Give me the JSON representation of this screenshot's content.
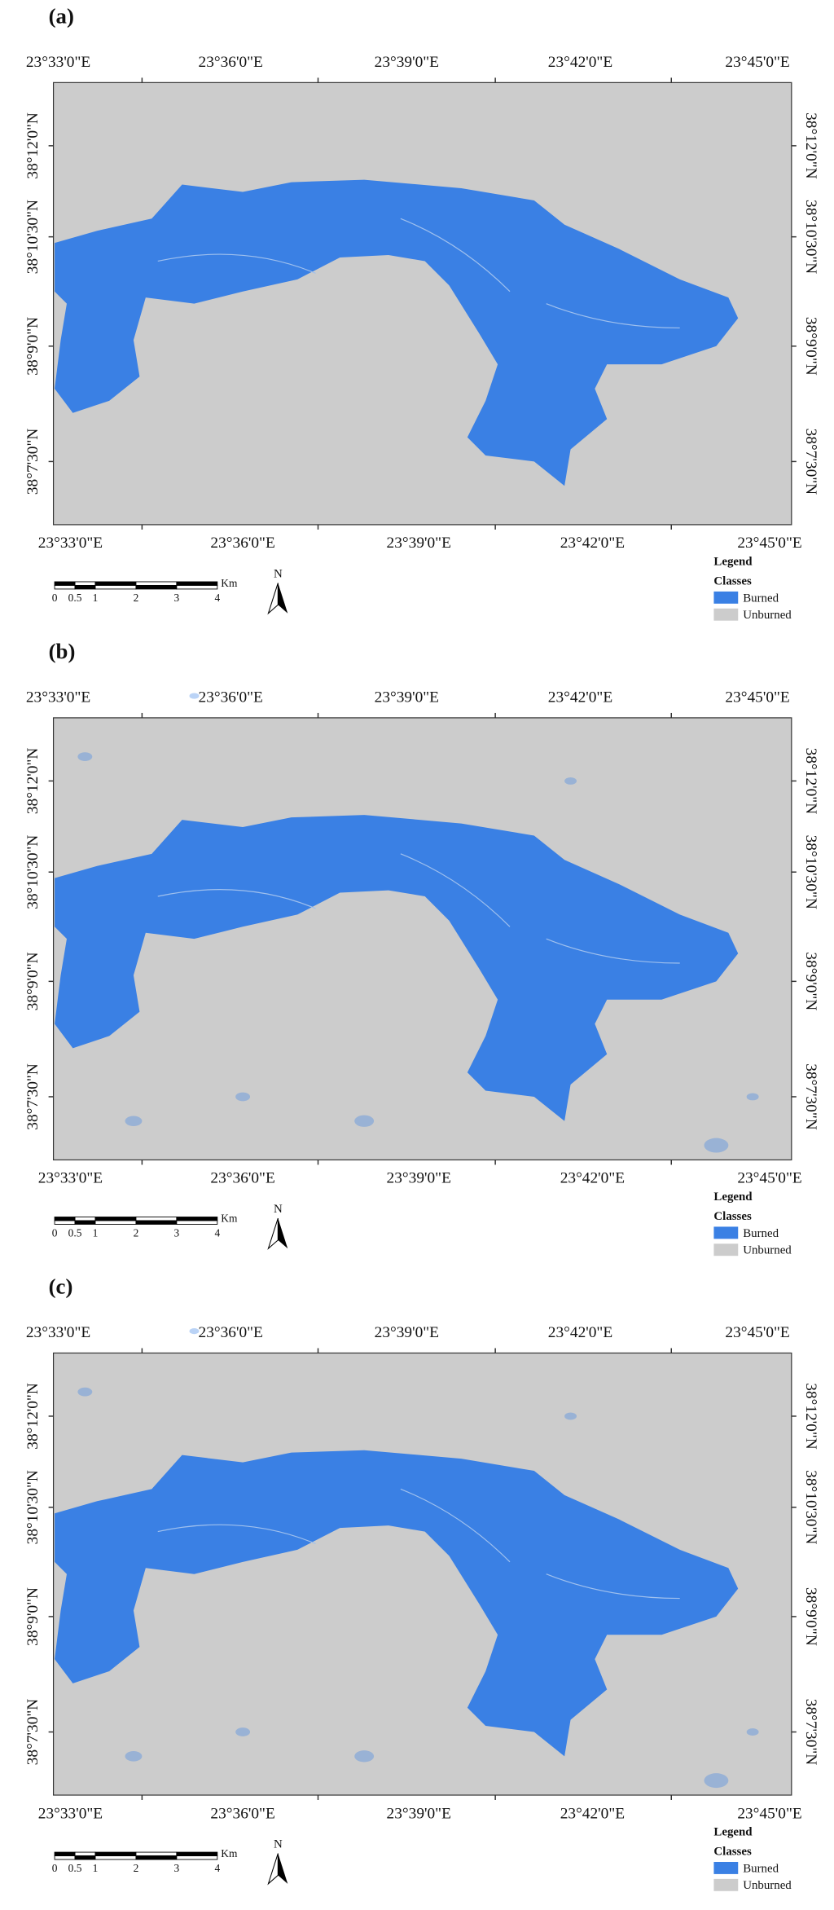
{
  "panels": [
    {
      "label": "(a)"
    },
    {
      "label": "(b)"
    },
    {
      "label": "(c)"
    }
  ],
  "map": {
    "top_labels": [
      "23°33'0\"E",
      "23°36'0\"E",
      "23°39'0\"E",
      "23°42'0\"E",
      "23°45'0\"E"
    ],
    "bottom_labels": [
      "23°33'0\"E",
      "23°36'0\"E",
      "23°39'0\"E",
      "23°42'0\"E",
      "23°45'0\"E"
    ],
    "left_labels": [
      "38°12'0\"N",
      "38°10'30\"N",
      "38°9'0\"N",
      "38°7'30\"N"
    ],
    "right_labels": [
      "38°12'0\"N",
      "38°10'30\"N",
      "38°9'0\"N",
      "38°7'30\"N"
    ]
  },
  "scale_bar": {
    "ticks": [
      0,
      0.5,
      1,
      2,
      3,
      4
    ],
    "unit": "Km"
  },
  "north": "N",
  "legend": {
    "title": "Legend",
    "subtitle": "Classes",
    "items": [
      {
        "label": "Burned",
        "color": "#3a80e4"
      },
      {
        "label": "Unburned",
        "color": "#cccccc"
      }
    ]
  }
}
